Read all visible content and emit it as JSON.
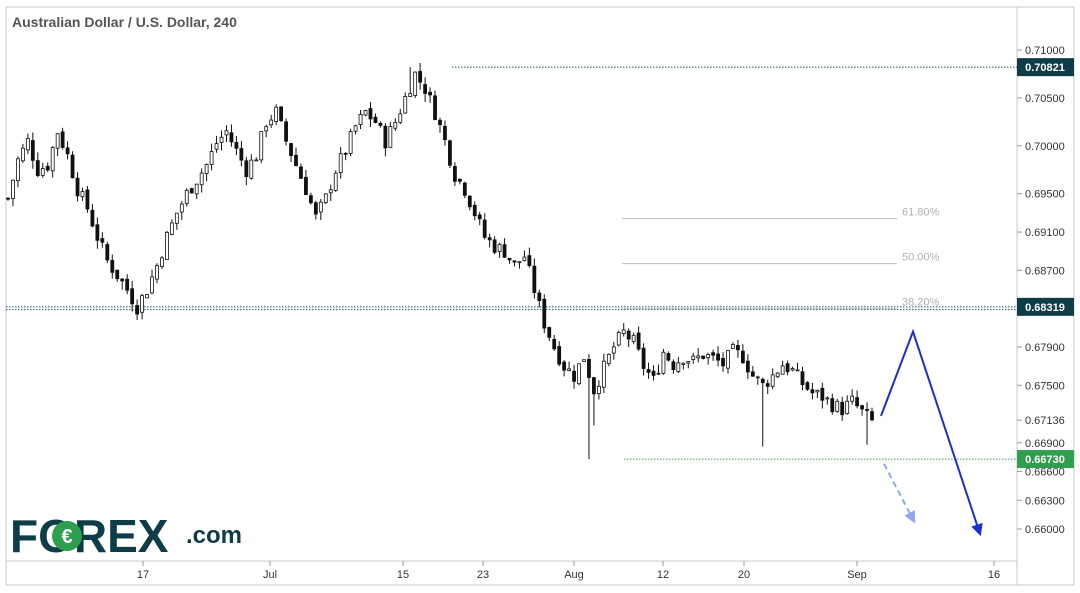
{
  "chart_data": {
    "type": "candlestick",
    "title": "Australian Dollar / U.S. Dollar, 240",
    "x_ticks": [
      "17",
      "Jul",
      "15",
      "23",
      "Aug",
      "12",
      "20",
      "Sep",
      "16"
    ],
    "y_ticks": [
      "0.71000",
      "0.70500",
      "0.70000",
      "0.69500",
      "0.69100",
      "0.68700",
      "0.67900",
      "0.67500",
      "0.67136",
      "0.66900",
      "0.66600",
      "0.66300",
      "0.66000"
    ],
    "ylim": [
      0.6565,
      0.7125
    ],
    "price_badges": [
      {
        "label": "0.70821",
        "value": 0.70821,
        "color": "#0e3c47"
      },
      {
        "label": "0.68319",
        "value": 0.68319,
        "color": "#0e3c47"
      },
      {
        "label": "0.66730",
        "value": 0.6673,
        "color": "#2e9e4f"
      }
    ],
    "fibonacci": [
      {
        "label": "61.80%",
        "value": 0.6924
      },
      {
        "label": "50.00%",
        "value": 0.6877
      },
      {
        "label": "38.20%",
        "value": 0.683
      }
    ],
    "path_points": [
      [
        0,
        0.6945
      ],
      [
        2,
        0.6985
      ],
      [
        4,
        0.7005
      ],
      [
        6,
        0.6975
      ],
      [
        8,
        0.698
      ],
      [
        10,
        0.7015
      ],
      [
        12,
        0.699
      ],
      [
        14,
        0.6955
      ],
      [
        16,
        0.6935
      ],
      [
        18,
        0.6905
      ],
      [
        20,
        0.688
      ],
      [
        22,
        0.6865
      ],
      [
        24,
        0.685
      ],
      [
        26,
        0.6832
      ],
      [
        28,
        0.685
      ],
      [
        30,
        0.6875
      ],
      [
        32,
        0.6905
      ],
      [
        34,
        0.693
      ],
      [
        36,
        0.695
      ],
      [
        38,
        0.6965
      ],
      [
        40,
        0.698
      ],
      [
        42,
        0.7003
      ],
      [
        44,
        0.7015
      ],
      [
        46,
        0.6995
      ],
      [
        48,
        0.6975
      ],
      [
        50,
        0.699
      ],
      [
        52,
        0.7025
      ],
      [
        54,
        0.7035
      ],
      [
        56,
        0.7005
      ],
      [
        58,
        0.698
      ],
      [
        60,
        0.6955
      ],
      [
        62,
        0.6925
      ],
      [
        64,
        0.6945
      ],
      [
        66,
        0.6975
      ],
      [
        68,
        0.6995
      ],
      [
        70,
        0.702
      ],
      [
        72,
        0.7035
      ],
      [
        74,
        0.7025
      ],
      [
        76,
        0.7005
      ],
      [
        78,
        0.7025
      ],
      [
        80,
        0.705
      ],
      [
        82,
        0.7075
      ],
      [
        84,
        0.706
      ],
      [
        86,
        0.7035
      ],
      [
        88,
        0.7005
      ],
      [
        90,
        0.697
      ],
      [
        92,
        0.6955
      ],
      [
        94,
        0.693
      ],
      [
        96,
        0.6905
      ],
      [
        98,
        0.6895
      ],
      [
        100,
        0.689
      ],
      [
        102,
        0.6875
      ],
      [
        104,
        0.6885
      ],
      [
        106,
        0.685
      ],
      [
        108,
        0.6815
      ],
      [
        110,
        0.679
      ],
      [
        112,
        0.677
      ],
      [
        114,
        0.676
      ],
      [
        116,
        0.678
      ],
      [
        118,
        0.6745
      ],
      [
        120,
        0.6768
      ],
      [
        122,
        0.679
      ],
      [
        124,
        0.6805
      ],
      [
        126,
        0.6795
      ],
      [
        128,
        0.677
      ],
      [
        130,
        0.6755
      ],
      [
        132,
        0.6785
      ],
      [
        134,
        0.6772
      ],
      [
        136,
        0.678
      ],
      [
        138,
        0.6775
      ],
      [
        140,
        0.6782
      ],
      [
        142,
        0.6778
      ],
      [
        144,
        0.6772
      ],
      [
        146,
        0.6785
      ],
      [
        148,
        0.678
      ],
      [
        150,
        0.676
      ],
      [
        152,
        0.675
      ],
      [
        154,
        0.676
      ],
      [
        156,
        0.6772
      ],
      [
        158,
        0.6765
      ],
      [
        160,
        0.6752
      ],
      [
        162,
        0.6742
      ],
      [
        164,
        0.6738
      ],
      [
        166,
        0.673
      ],
      [
        168,
        0.6725
      ],
      [
        170,
        0.6733
      ],
      [
        172,
        0.6722
      ],
      [
        174,
        0.6712
      ]
    ],
    "spikes": [
      {
        "i": 25,
        "low": 0.6827
      },
      {
        "i": 81,
        "high": 0.70821
      },
      {
        "i": 117,
        "low": 0.6673
      },
      {
        "i": 118,
        "low": 0.6708
      },
      {
        "i": 152,
        "low": 0.6686
      },
      {
        "i": 173,
        "low": 0.6688
      }
    ],
    "projection": {
      "solid": [
        [
          0.6718,
          0
        ],
        [
          0.6806,
          1
        ],
        [
          0.6595,
          2
        ]
      ],
      "dashed": [
        [
          0.6668,
          0
        ],
        [
          0.6608,
          1
        ]
      ]
    }
  },
  "brand": {
    "logo_text": "FOREX",
    "logo_suffix": ".com"
  }
}
